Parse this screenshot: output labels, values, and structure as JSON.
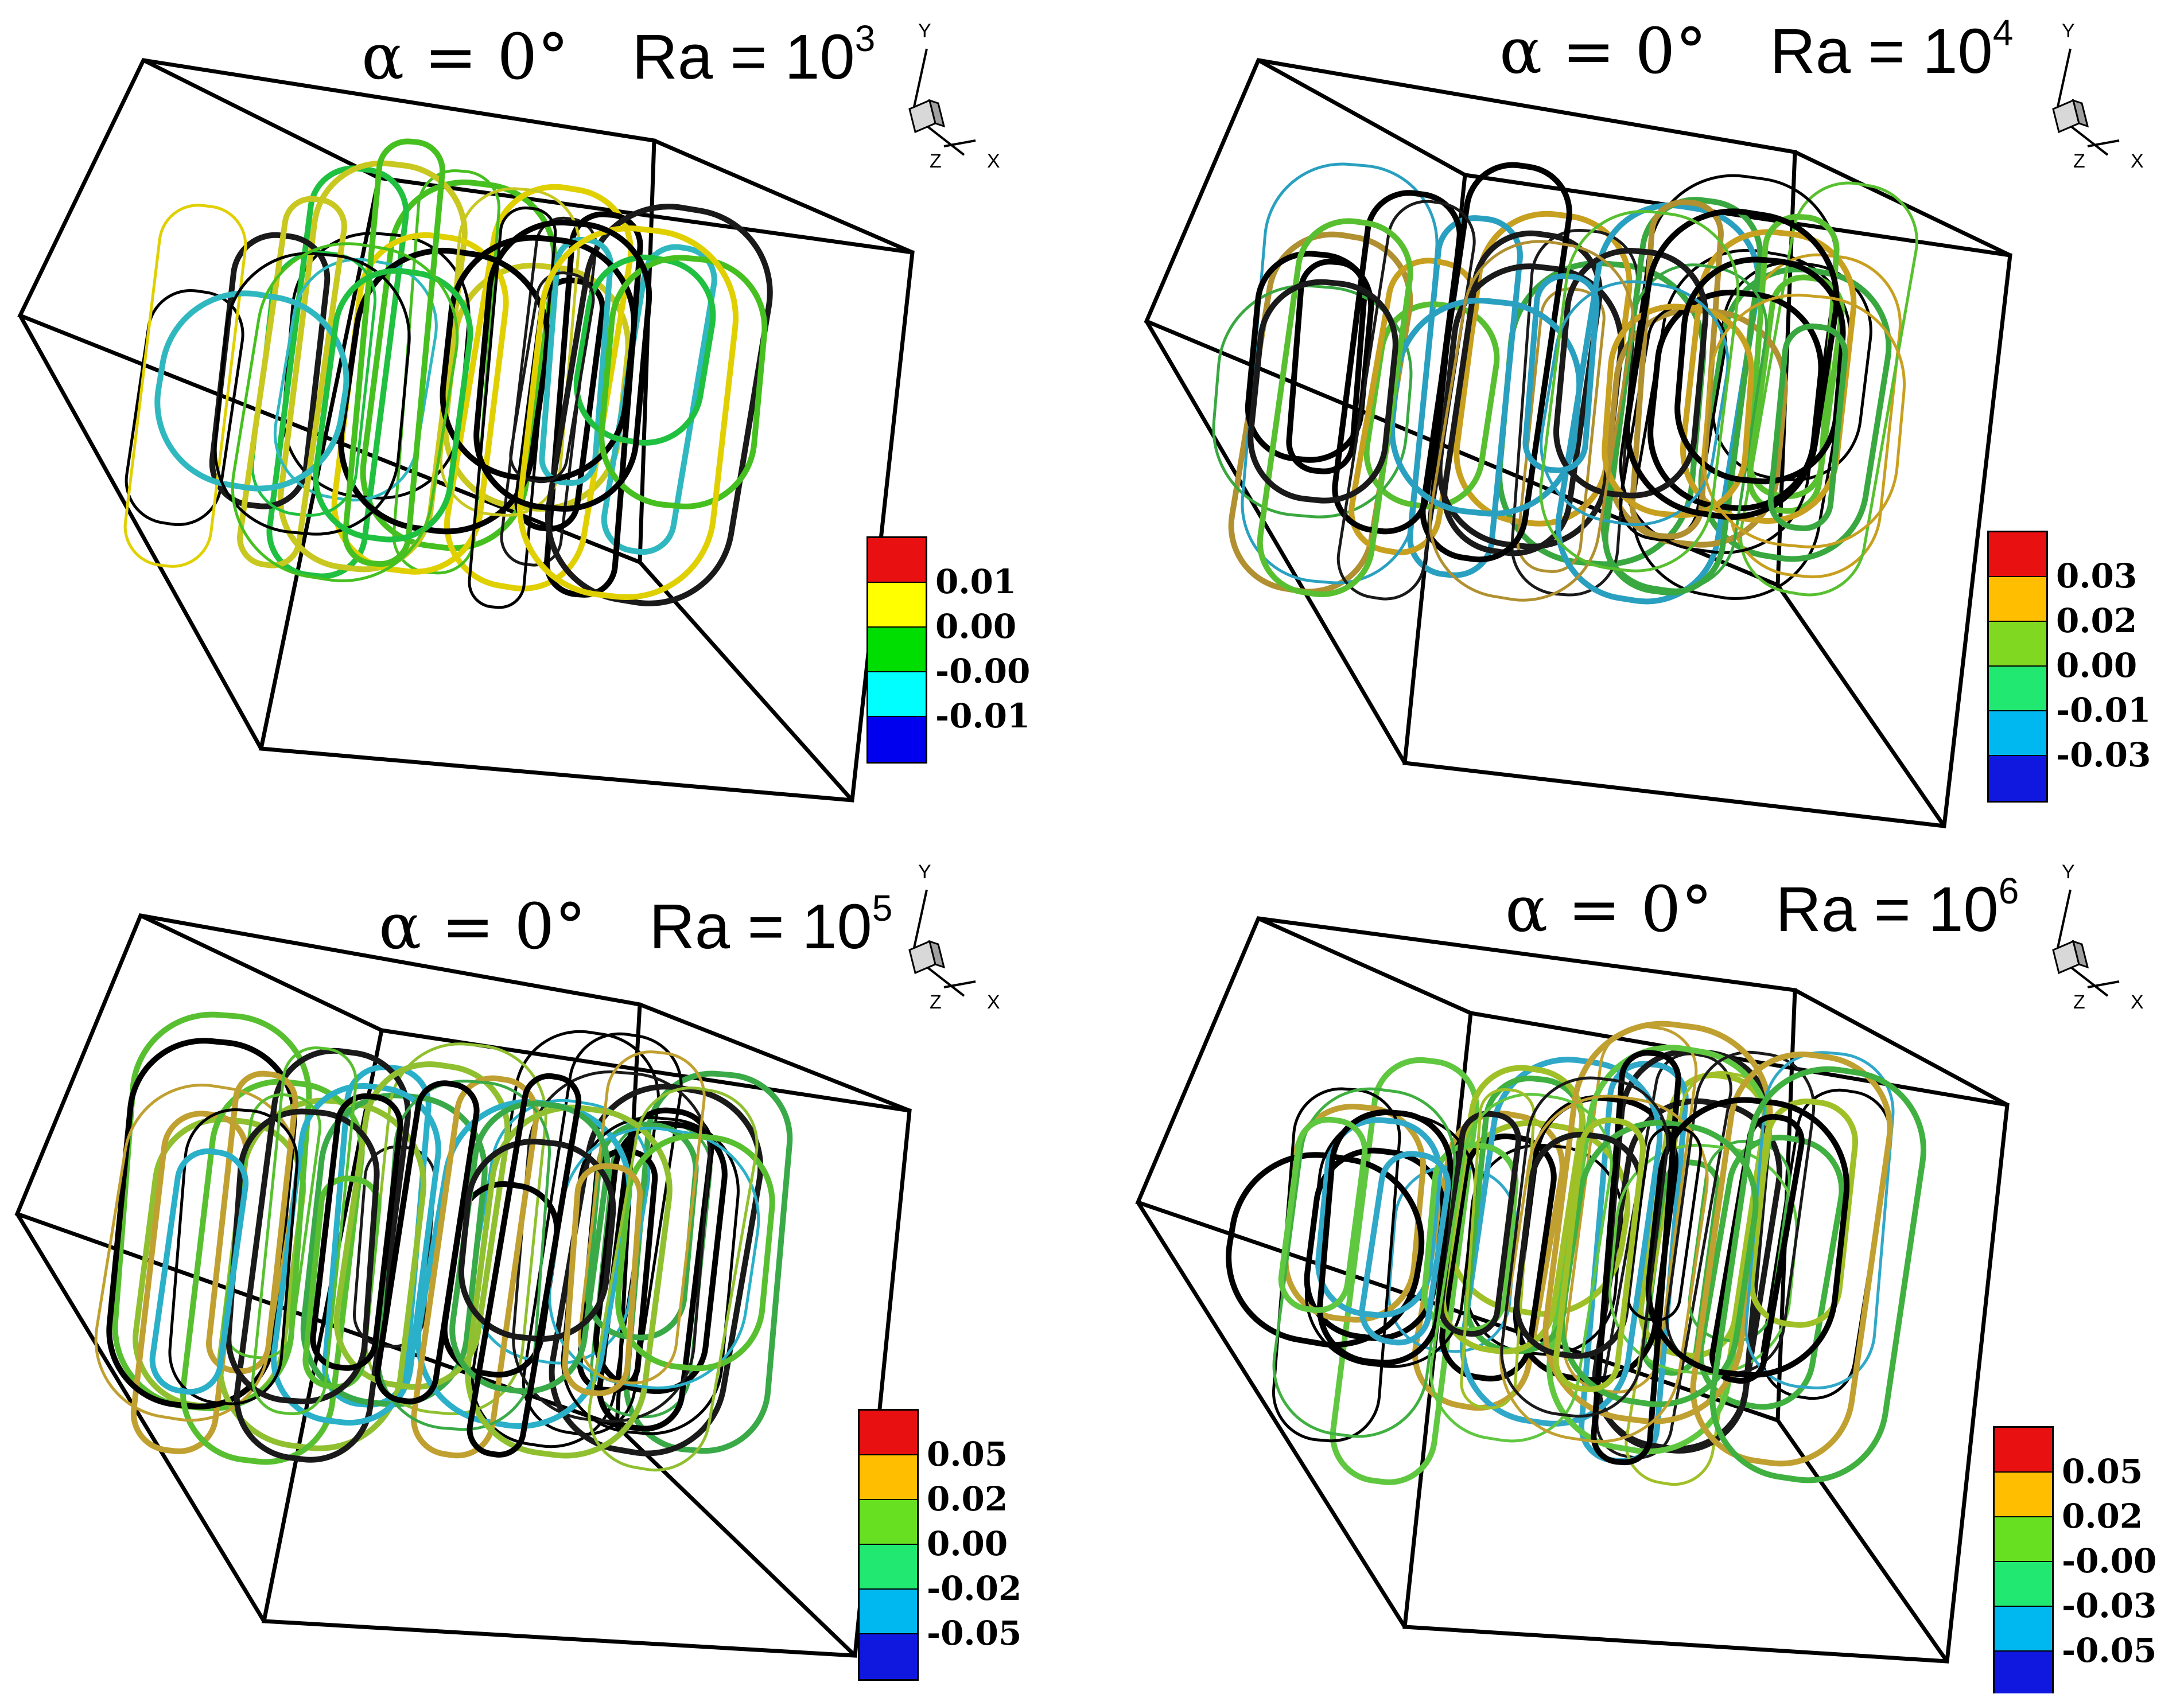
{
  "panels": [
    {
      "alpha_label": "α = 0°",
      "ra_prefix": "Ra = 10",
      "ra_exponent": "3",
      "axes": {
        "y": "Y",
        "z": "Z",
        "x": "X"
      },
      "legend": {
        "labels": [
          "0.01",
          "0.00",
          "-0.00",
          "-0.01"
        ],
        "colors": [
          "#e81010",
          "#ffff00",
          "#00dd00",
          "#00ffff",
          "#0000ee"
        ]
      }
    },
    {
      "alpha_label": "α = 0°",
      "ra_prefix": "Ra = 10",
      "ra_exponent": "4",
      "axes": {
        "y": "Y",
        "z": "Z",
        "x": "X"
      },
      "legend": {
        "labels": [
          "0.03",
          "0.02",
          "0.00",
          "-0.01",
          "-0.03"
        ],
        "colors": [
          "#e81010",
          "#ffbf00",
          "#80d820",
          "#20e870",
          "#00b8f0",
          "#1018e0"
        ]
      }
    },
    {
      "alpha_label": "α = 0°",
      "ra_prefix": "Ra = 10",
      "ra_exponent": "5",
      "axes": {
        "y": "Y",
        "z": "Z",
        "x": "X"
      },
      "legend": {
        "labels": [
          "0.05",
          "0.02",
          "0.00",
          "-0.02",
          "-0.05"
        ],
        "colors": [
          "#e81010",
          "#ffbf00",
          "#66e020",
          "#20e870",
          "#00b8f0",
          "#1018e0"
        ]
      }
    },
    {
      "alpha_label": "α = 0°",
      "ra_prefix": "Ra = 10",
      "ra_exponent": "6",
      "axes": {
        "y": "Y",
        "z": "Z",
        "x": "X"
      },
      "legend": {
        "labels": [
          "0.05",
          "0.02",
          "-0.00",
          "-0.03",
          "-0.05"
        ],
        "colors": [
          "#e81010",
          "#ffbf00",
          "#66e020",
          "#20e870",
          "#00b8f0",
          "#1018e0"
        ]
      }
    }
  ]
}
